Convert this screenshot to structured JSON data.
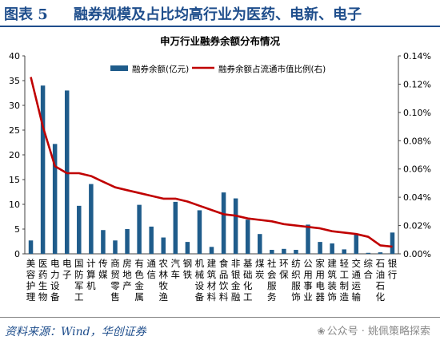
{
  "header": {
    "figure_label": "图表 5",
    "title": "融券规模及占比均高行业为医药、电新、电子"
  },
  "footer": {
    "source": "资料来源：Wind，华创证券",
    "watermark_prefix": "公众号 · ",
    "watermark_name": "姚佩策略探索"
  },
  "colors": {
    "bar": "#1f5c8b",
    "line": "#c00000",
    "accent": "#1f4e8c"
  },
  "chart_data": {
    "type": "bar",
    "title": "申万行业融券余额分布情况",
    "legend_position": "top-center",
    "grid": false,
    "categories": [
      "美容护理",
      "医药生物",
      "电力设备",
      "电子",
      "国防军工",
      "计算机",
      "传媒",
      "商贸零售",
      "房地产",
      "有色金属",
      "通信",
      "农林牧渔",
      "汽车",
      "钢铁",
      "机械设备",
      "建筑材料",
      "食品饮料",
      "非银金融",
      "基础化工",
      "煤炭",
      "社会服务",
      "环保",
      "纺织服饰",
      "公用事业",
      "家用电器",
      "建筑装饰",
      "轻工制造",
      "交通运输",
      "综合",
      "石油石化",
      "银行"
    ],
    "category_labels": [
      [
        "美",
        "容",
        "护",
        "理"
      ],
      [
        "医",
        "药",
        "生",
        "物"
      ],
      [
        "电",
        "力",
        "设",
        "备"
      ],
      [
        "电",
        "子"
      ],
      [
        "国",
        "防",
        "军",
        "工"
      ],
      [
        "计",
        "算",
        "机"
      ],
      [
        "传",
        "媒"
      ],
      [
        "商",
        "贸",
        "零",
        "售"
      ],
      [
        "房",
        "地",
        "产"
      ],
      [
        "有",
        "色",
        "金",
        "属"
      ],
      [
        "通",
        "信"
      ],
      [
        "农",
        "林",
        "牧",
        "渔"
      ],
      [
        "汽",
        "车"
      ],
      [
        "钢",
        "铁"
      ],
      [
        "机",
        "械",
        "设",
        "备"
      ],
      [
        "建",
        "筑",
        "材",
        "料"
      ],
      [
        "食",
        "品",
        "饮",
        "料"
      ],
      [
        "非",
        "银",
        "金",
        "融"
      ],
      [
        "基",
        "础",
        "化",
        "工"
      ],
      [
        "煤",
        "炭"
      ],
      [
        "社",
        "会",
        "服",
        "务"
      ],
      [
        "环",
        "保"
      ],
      [
        "纺",
        "织",
        "服",
        "饰"
      ],
      [
        "公",
        "用",
        "事",
        "业"
      ],
      [
        "家",
        "用",
        "电",
        "器"
      ],
      [
        "建",
        "筑",
        "装",
        "饰"
      ],
      [
        "轻",
        "工",
        "制",
        "造"
      ],
      [
        "交",
        "通",
        "运",
        "输"
      ],
      [
        "综",
        "合"
      ],
      [
        "石",
        "油",
        "石",
        "化"
      ],
      [
        "银",
        "行"
      ]
    ],
    "series": [
      {
        "name": "融券余额(亿元)",
        "type": "bar",
        "axis": "left",
        "values": [
          2.7,
          34.0,
          22.2,
          33.0,
          9.7,
          14.1,
          4.8,
          2.7,
          5.0,
          9.9,
          5.5,
          3.3,
          10.5,
          2.4,
          8.8,
          1.4,
          12.4,
          11.2,
          6.9,
          4.0,
          0.8,
          1.0,
          0.8,
          5.9,
          2.4,
          2.1,
          0.9,
          3.9,
          0.2,
          0.3,
          4.3
        ]
      },
      {
        "name": "融券余额占流通市值比例(右)",
        "type": "line",
        "axis": "right",
        "values": [
          0.125,
          0.09,
          0.062,
          0.057,
          0.057,
          0.055,
          0.051,
          0.047,
          0.045,
          0.043,
          0.041,
          0.039,
          0.039,
          0.037,
          0.034,
          0.031,
          0.028,
          0.027,
          0.025,
          0.024,
          0.023,
          0.021,
          0.02,
          0.019,
          0.018,
          0.016,
          0.015,
          0.014,
          0.012,
          0.006,
          0.005
        ]
      }
    ],
    "y_left": {
      "min": 0,
      "max": 40,
      "ticks": [
        "0",
        "5",
        "10",
        "15",
        "20",
        "25",
        "30",
        "35",
        "40"
      ]
    },
    "y_right": {
      "min": 0,
      "max": 0.14,
      "ticks": [
        "0.00%",
        "0.02%",
        "0.04%",
        "0.06%",
        "0.08%",
        "0.10%",
        "0.12%",
        "0.14%"
      ]
    }
  }
}
